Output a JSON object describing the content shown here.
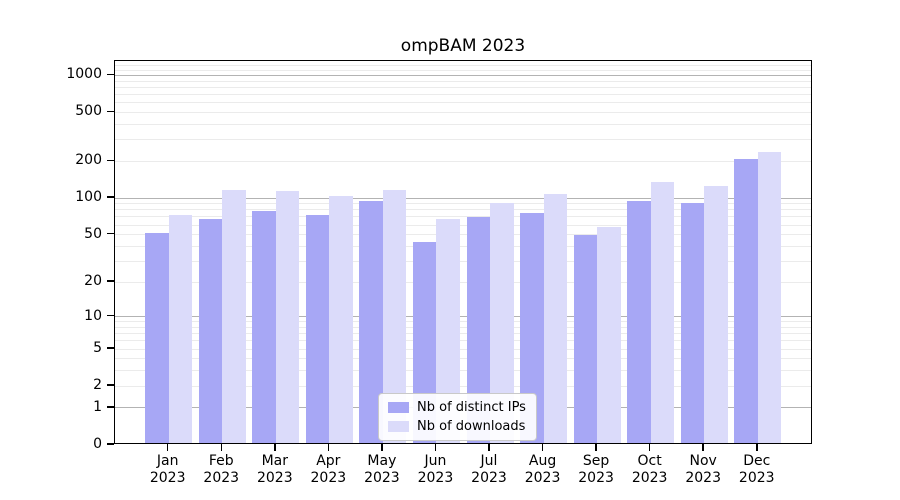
{
  "chart_data": {
    "type": "bar",
    "title": "ompBAM 2023",
    "categories": [
      "Jan",
      "Feb",
      "Mar",
      "Apr",
      "May",
      "Jun",
      "Jul",
      "Aug",
      "Sep",
      "Oct",
      "Nov",
      "Dec"
    ],
    "year_label": "2023",
    "series": [
      {
        "name": "Nb of distinct IPs",
        "color": "#a7a7f5",
        "values": [
          50,
          65,
          76,
          70,
          92,
          42,
          68,
          73,
          48,
          92,
          88,
          200
        ]
      },
      {
        "name": "Nb of downloads",
        "color": "#dbdbfa",
        "values": [
          70,
          113,
          111,
          101,
          113,
          65,
          88,
          105,
          56,
          131,
          120,
          228
        ]
      }
    ],
    "y_axis": {
      "scale": "log1p",
      "ticks": [
        0,
        1,
        2,
        5,
        10,
        20,
        50,
        100,
        200,
        500,
        1000
      ],
      "tick_labels": [
        "0",
        "1",
        "2",
        "5",
        "10",
        "20",
        "50",
        "100",
        "200",
        "500",
        "1000"
      ],
      "max": 1310
    },
    "legend": {
      "position": "lower-center"
    },
    "grid": {
      "major_on": true,
      "minor_on": true
    },
    "colors": {
      "major_grid": "#b3b3b3",
      "minor_grid": "#ebebeb",
      "spine": "#000000",
      "text": "#000000"
    }
  }
}
